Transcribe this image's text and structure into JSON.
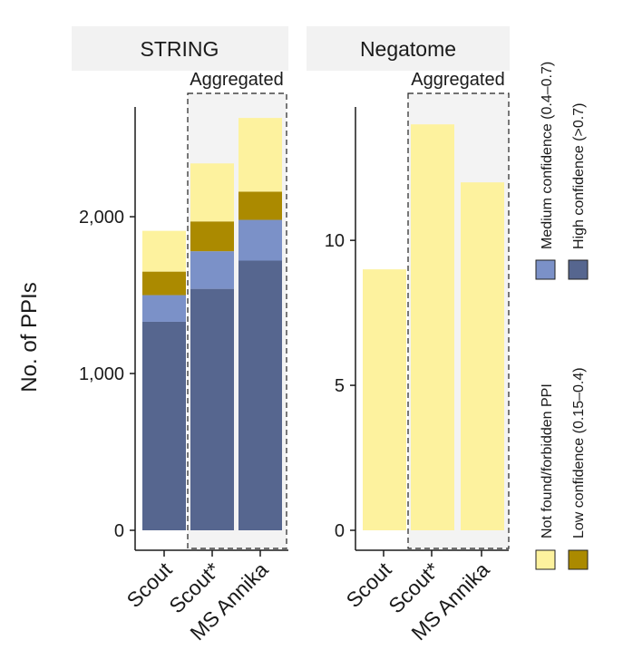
{
  "colors": {
    "high": "#56668f",
    "medium": "#7b91c8",
    "low": "#ab8a00",
    "notfound": "#fdf29e",
    "panel_strip": "#f2f2f2",
    "aggregated_bg": "#f3f3f3",
    "axis": "#1a1a1a"
  },
  "ylabel": "No. of PPIs",
  "x_categories": [
    "Scout",
    "Scout*",
    "MS Annika"
  ],
  "legend": [
    {
      "key": "notfound",
      "label": "Not found/forbidden PPI"
    },
    {
      "key": "low",
      "label": "Low confidence (0.15–0.4)"
    },
    {
      "key": "medium",
      "label": "Medium confidence (0.4–0.7)"
    },
    {
      "key": "high",
      "label": "High confidence (>0.7)"
    }
  ],
  "chart_data": [
    {
      "type": "bar",
      "stacked": true,
      "title": "STRING",
      "annotation": "Aggregated",
      "categories": [
        "Scout",
        "Scout*",
        "MS Annika"
      ],
      "ylim": [
        0,
        2700
      ],
      "yticks": [
        0,
        1000,
        2000
      ],
      "ytick_labels": [
        "0",
        "1,000",
        "2,000"
      ],
      "series": [
        {
          "key": "high",
          "values": [
            1330,
            1540,
            1720
          ]
        },
        {
          "key": "medium",
          "values": [
            170,
            240,
            260
          ]
        },
        {
          "key": "low",
          "values": [
            150,
            190,
            180
          ]
        },
        {
          "key": "notfound",
          "values": [
            260,
            370,
            470
          ]
        }
      ]
    },
    {
      "type": "bar",
      "stacked": true,
      "title": "Negatome",
      "annotation": "Aggregated",
      "categories": [
        "Scout",
        "Scout*",
        "MS Annika"
      ],
      "ylim": [
        0,
        14.6
      ],
      "yticks": [
        0,
        5,
        10
      ],
      "ytick_labels": [
        "0",
        "5",
        "10"
      ],
      "series": [
        {
          "key": "notfound",
          "values": [
            9,
            14,
            12
          ]
        }
      ]
    }
  ]
}
